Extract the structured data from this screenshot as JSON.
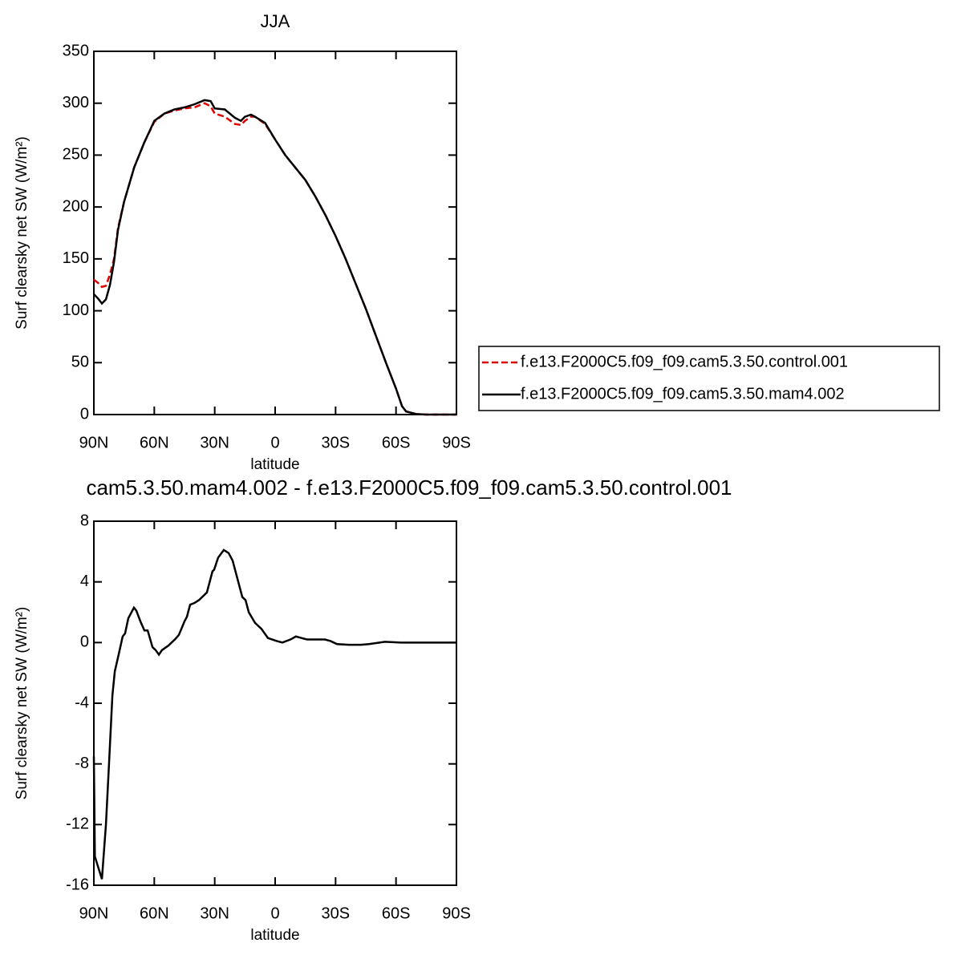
{
  "chart_data": [
    {
      "type": "line",
      "title": "JJA",
      "xlabel": "latitude",
      "ylabel": "Surf clearsky net SW (W/m²)",
      "x": [
        90,
        88,
        86,
        84,
        82,
        80,
        78,
        75,
        70,
        65,
        60,
        55,
        50,
        45,
        40,
        35,
        32,
        30,
        25,
        20,
        17,
        15,
        12,
        10,
        5,
        0,
        -5,
        -10,
        -15,
        -20,
        -25,
        -30,
        -35,
        -40,
        -45,
        -50,
        -55,
        -60,
        -63,
        -65,
        -70,
        -75,
        -90
      ],
      "series": [
        {
          "name": "f.e13.F2000C5.f09_f09.cam5.3.50.control.001",
          "color": "#e00000",
          "line_style": "dashed",
          "values": [
            130,
            127,
            123,
            124,
            135,
            150,
            180,
            205,
            238,
            262,
            282,
            290,
            293,
            295,
            296,
            300,
            297,
            290,
            287,
            280,
            279,
            283,
            287,
            287,
            280,
            265,
            250,
            238,
            226,
            210,
            192,
            172,
            150,
            126,
            102,
            76,
            50,
            25,
            8,
            3,
            0.5,
            0,
            0
          ]
        },
        {
          "name": "f.e13.F2000C5.f09_f09.cam5.3.50.mam4.002",
          "color": "#000000",
          "line_style": "solid",
          "values": [
            116,
            112,
            107,
            111,
            125,
            147,
            178,
            205,
            238,
            262,
            283,
            290,
            294,
            296,
            299,
            303,
            302,
            295,
            294,
            286,
            283,
            287,
            289,
            287,
            281,
            265,
            250,
            238,
            226,
            210,
            192,
            172,
            150,
            126,
            102,
            76,
            50,
            25,
            8,
            3,
            0.5,
            0,
            0
          ]
        }
      ],
      "xlim": [
        90,
        -90
      ],
      "xticks": [
        {
          "value": 90,
          "label": "90N"
        },
        {
          "value": 60,
          "label": "60N"
        },
        {
          "value": 30,
          "label": "30N"
        },
        0,
        {
          "value": -30,
          "label": "30S"
        },
        {
          "value": -60,
          "label": "60S"
        },
        {
          "value": -90,
          "label": "90S"
        }
      ],
      "ylim": [
        0,
        350
      ],
      "yticks": [
        0,
        50,
        100,
        150,
        200,
        250,
        300,
        350
      ],
      "legend": "right"
    },
    {
      "type": "line",
      "title": "cam5.3.50.mam4.002 - f.e13.F2000C5.f09_f09.cam5.3.50.control.001",
      "xlabel": "latitude",
      "ylabel": "Surf clearsky net SW (W/m²)",
      "x": [
        90,
        89.5,
        86,
        84,
        82.4,
        80.8,
        79.6,
        77.7,
        75.7,
        74.5,
        72.9,
        70.1,
        68.9,
        66.9,
        64.9,
        63.3,
        60.9,
        59.3,
        57.7,
        56.2,
        53,
        49.8,
        47.8,
        45,
        43.8,
        42.2,
        40.2,
        37.8,
        33.9,
        31.1,
        30.3,
        28.3,
        25.5,
        23.1,
        21.1,
        18.7,
        16.3,
        14.7,
        13.1,
        10,
        6.8,
        3.6,
        -0.8,
        -3.6,
        -7.6,
        -10.3,
        -13.1,
        -15.9,
        -20.7,
        -24.7,
        -27.5,
        -30.7,
        -36.6,
        -42.6,
        -46.6,
        -54.5,
        -62.5,
        -90
      ],
      "series": [
        {
          "color": "#000000",
          "line_style": "solid",
          "values": [
            -7.5,
            -14.1,
            -15.6,
            -12,
            -7.8,
            -3.5,
            -1.9,
            -0.8,
            0.4,
            0.6,
            1.6,
            2.3,
            2.1,
            1.4,
            0.8,
            0.8,
            -0.3,
            -0.5,
            -0.8,
            -0.5,
            -0.2,
            0.2,
            0.5,
            1.4,
            1.7,
            2.5,
            2.6,
            2.8,
            3.3,
            4.7,
            4.8,
            5.6,
            6.1,
            5.9,
            5.4,
            4.2,
            3.0,
            2.8,
            2.0,
            1.3,
            0.9,
            0.3,
            0.1,
            0,
            0.2,
            0.4,
            0.3,
            0.2,
            0.2,
            0.2,
            0.1,
            -0.1,
            -0.15,
            -0.15,
            -0.1,
            0.05,
            0,
            0
          ]
        }
      ],
      "xlim": [
        90,
        -90
      ],
      "xticks": [
        {
          "value": 90,
          "label": "90N"
        },
        {
          "value": 60,
          "label": "60N"
        },
        {
          "value": 30,
          "label": "30N"
        },
        0,
        {
          "value": -30,
          "label": "30S"
        },
        {
          "value": -60,
          "label": "60S"
        },
        {
          "value": -90,
          "label": "90S"
        }
      ],
      "ylim": [
        -16,
        8
      ],
      "yticks": [
        -16,
        -12,
        -8,
        -4,
        0,
        4,
        8
      ]
    }
  ]
}
